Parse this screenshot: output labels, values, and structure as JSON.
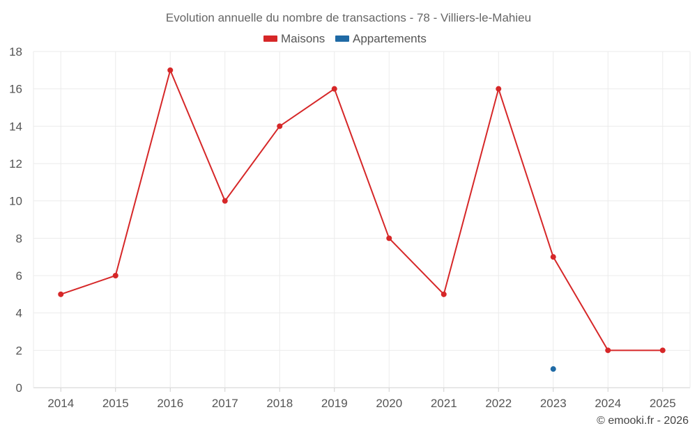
{
  "chart_data": {
    "type": "line",
    "title": "Evolution annuelle du nombre de transactions - 78 - Villiers-le-Mahieu",
    "categories": [
      "2014",
      "2015",
      "2016",
      "2017",
      "2018",
      "2019",
      "2020",
      "2021",
      "2022",
      "2023",
      "2024",
      "2025"
    ],
    "series": [
      {
        "name": "Maisons",
        "color": "#d62728",
        "values": [
          5,
          6,
          17,
          10,
          14,
          16,
          8,
          5,
          16,
          7,
          2,
          2
        ]
      },
      {
        "name": "Appartements",
        "color": "#1f6aa5",
        "values": [
          null,
          null,
          null,
          null,
          null,
          null,
          null,
          null,
          null,
          1,
          null,
          null
        ]
      }
    ],
    "ylim": [
      0,
      18
    ],
    "yticks": [
      0,
      2,
      4,
      6,
      8,
      10,
      12,
      14,
      16,
      18
    ],
    "xlabel": "",
    "ylabel": "",
    "grid": true,
    "legend_position": "top-center"
  },
  "credit": "© emooki.fr - 2026"
}
